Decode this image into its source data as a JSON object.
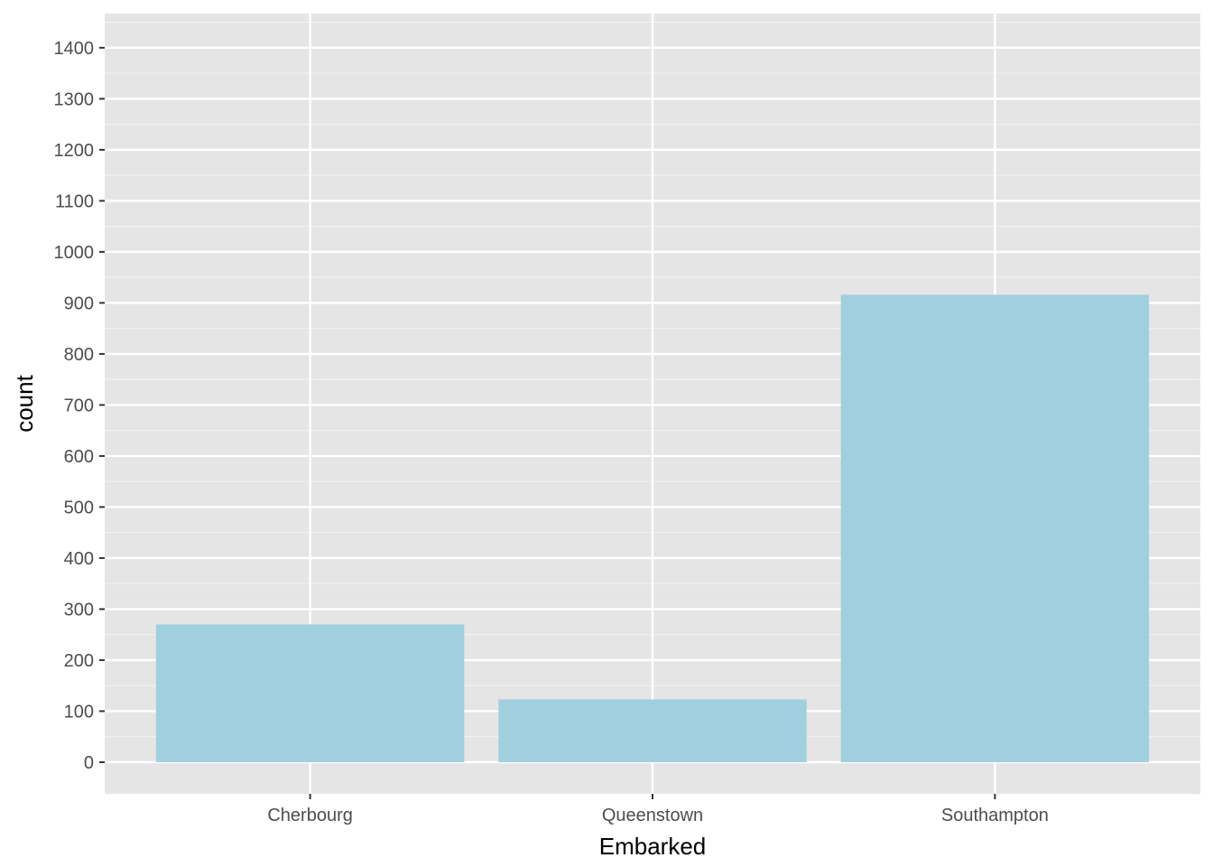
{
  "chart_data": {
    "type": "bar",
    "title": "",
    "xlabel": "Embarked",
    "ylabel": "count",
    "categories": [
      "Cherbourg",
      "Queenstown",
      "Southampton"
    ],
    "values": [
      270,
      123,
      916
    ],
    "ylim": [
      -62,
      1467
    ],
    "yticks": [
      0,
      100,
      200,
      300,
      400,
      500,
      600,
      700,
      800,
      900,
      1000,
      1100,
      1200,
      1300,
      1400
    ],
    "grid": true,
    "legend": "none",
    "colors": {
      "bar": "#a0cfdf",
      "panel": "#e5e5e5",
      "grid_major": "#ffffff",
      "grid_minor": "#f2f2f2",
      "tick": "#333333",
      "tick_label": "#4d4d4d"
    }
  }
}
